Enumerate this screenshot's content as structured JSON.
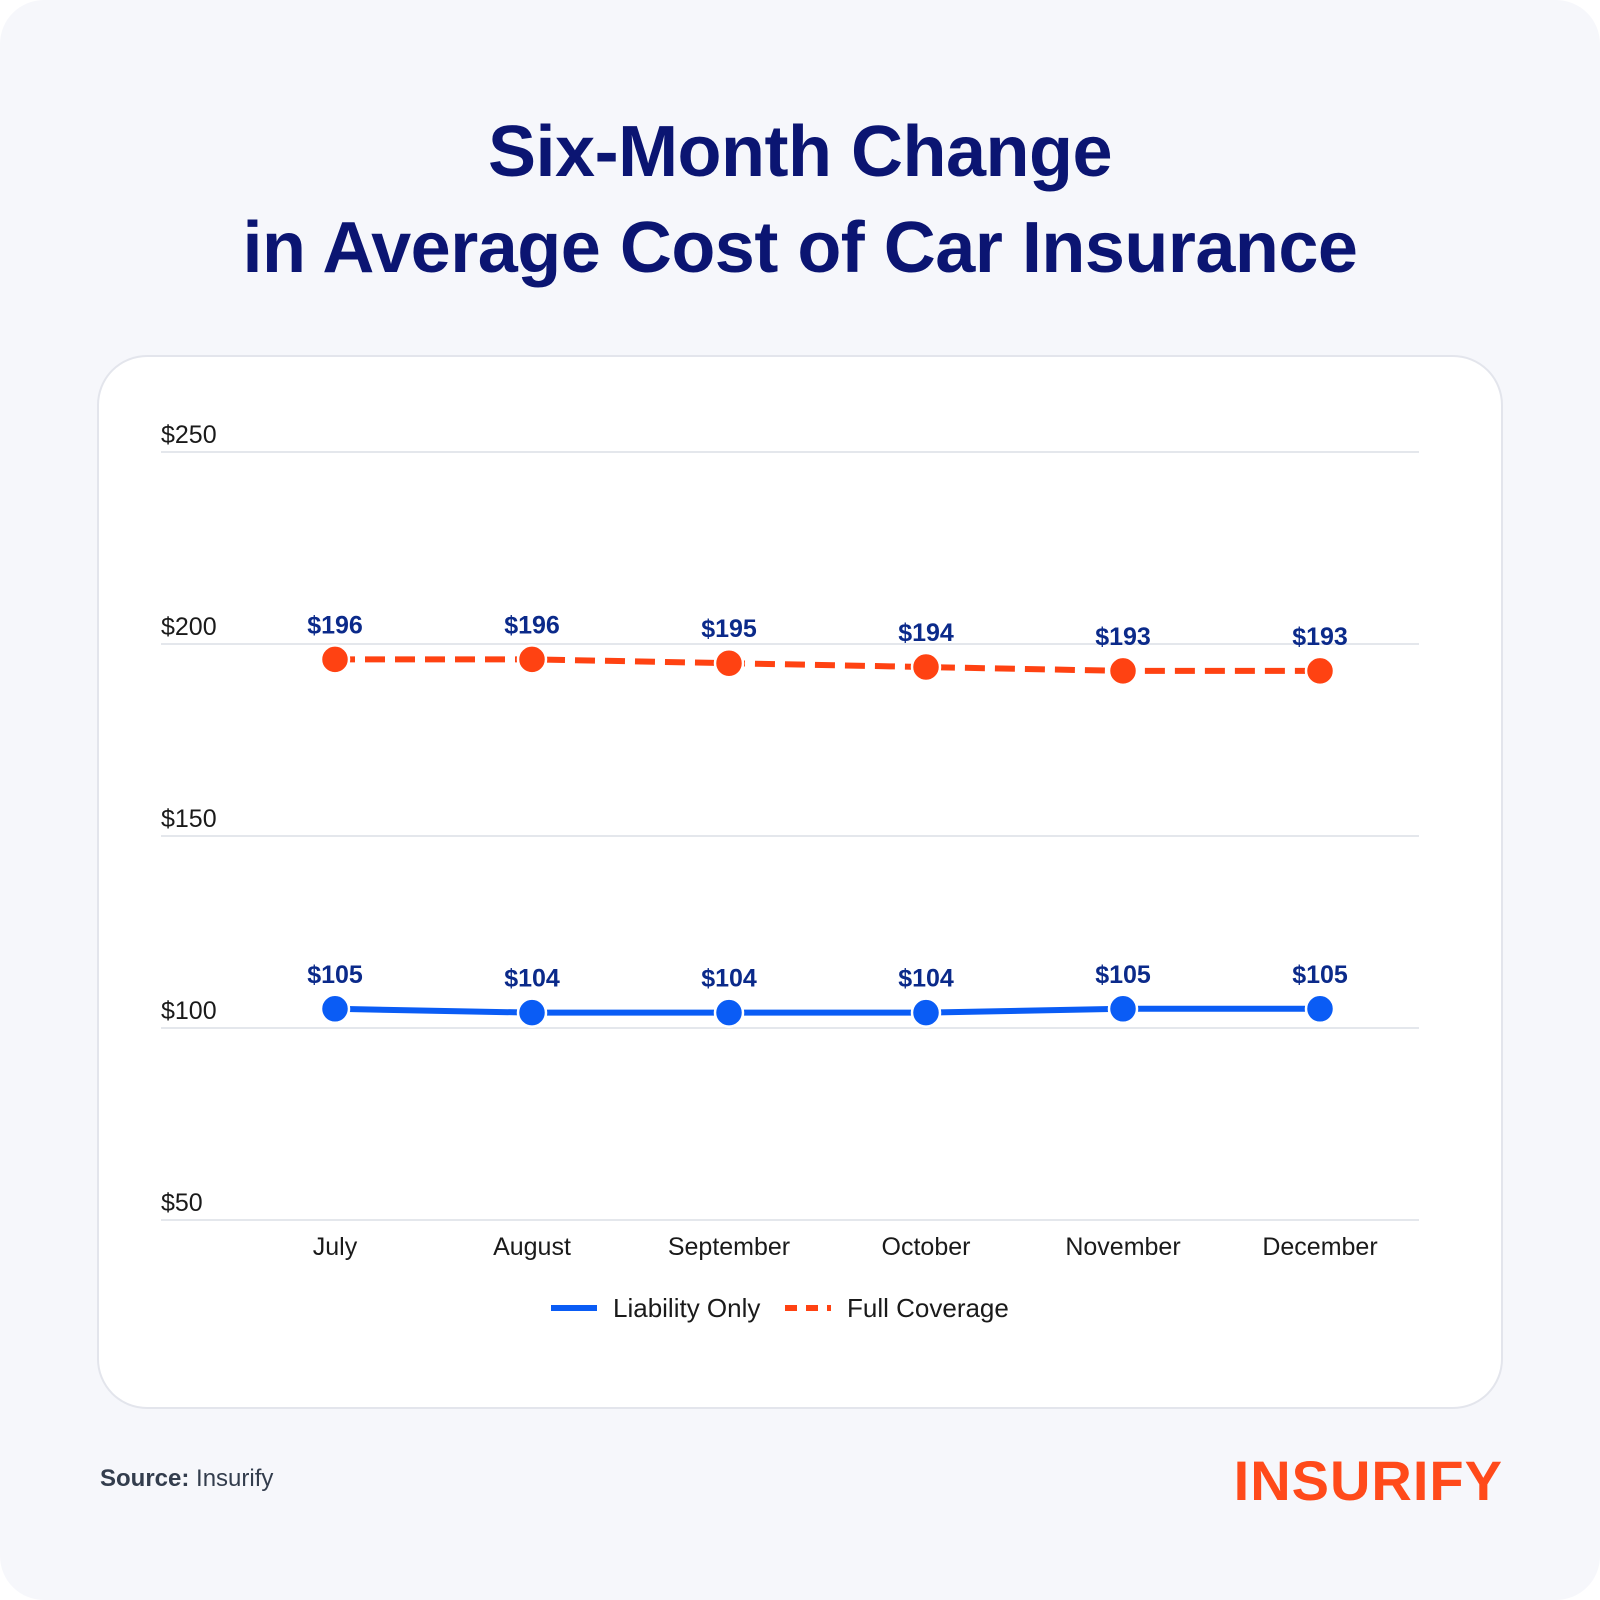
{
  "title": {
    "line1": "Six-Month Change",
    "line2": "in Average Cost of Car Insurance"
  },
  "colors": {
    "title": "#0b1572",
    "liability": "#0a5cf5",
    "full_coverage": "#ff4212",
    "data_label": "#0b2a8a",
    "gridline": "#dcdfe6",
    "logo": "#ff4a1a"
  },
  "chart_data": {
    "type": "line",
    "x": [
      "July",
      "August",
      "September",
      "October",
      "November",
      "December"
    ],
    "ylim": [
      50,
      250
    ],
    "yticks": [
      50,
      100,
      150,
      200,
      250
    ],
    "ytick_labels": [
      "$50",
      "$100",
      "$150",
      "$200",
      "$250"
    ],
    "grid": true,
    "legend_placement": "bottom-center",
    "series": [
      {
        "name": "Liability Only",
        "style": "solid",
        "values": [
          105,
          104,
          104,
          104,
          105,
          105
        ],
        "labels": [
          "$105",
          "$104",
          "$104",
          "$104",
          "$105",
          "$105"
        ]
      },
      {
        "name": "Full Coverage",
        "style": "dashed",
        "values": [
          196,
          196,
          195,
          194,
          193,
          193
        ],
        "labels": [
          "$196",
          "$196",
          "$195",
          "$194",
          "$193",
          "$193"
        ]
      }
    ]
  },
  "footer": {
    "source_label": "Source:",
    "source_value": " Insurify",
    "logo_text": "INSURIFY"
  }
}
